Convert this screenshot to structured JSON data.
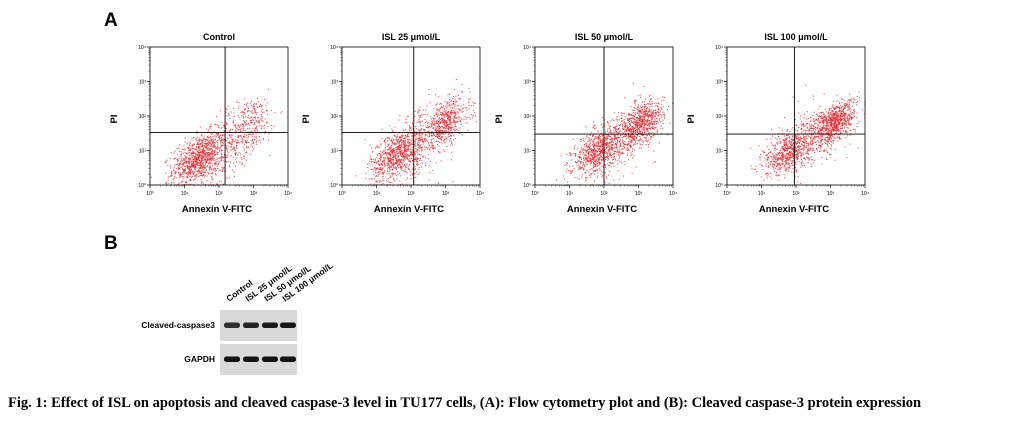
{
  "panel_a_letter": "A",
  "panel_b_letter": "B",
  "chart_data": [
    {
      "type": "scatter",
      "title": "Control",
      "xlabel": "Annexin V-FITC",
      "ylabel": "PI",
      "xscale": "log",
      "yscale": "log",
      "xlim": [
        1,
        10000
      ],
      "ylim": [
        1,
        10000
      ],
      "ticks": [
        "10⁰",
        "10¹",
        "10²",
        "10³",
        "10⁴"
      ],
      "quadrant_gate": {
        "x": 150,
        "y": 33
      },
      "clusters": [
        {
          "center": [
            25,
            6
          ],
          "spread": 0.38,
          "count": 900
        },
        {
          "center": [
            600,
            55
          ],
          "spread": 0.45,
          "count": 320
        },
        {
          "center": [
            120,
            8
          ],
          "spread": 0.6,
          "count": 260
        }
      ],
      "grid": false,
      "point_color": "#e8282e"
    },
    {
      "type": "scatter",
      "title": "ISL 25 μmol/L",
      "xlabel": "Annexin V-FITC",
      "ylabel": "PI",
      "xscale": "log",
      "yscale": "log",
      "xlim": [
        1,
        10000
      ],
      "ylim": [
        1,
        10000
      ],
      "ticks": [
        "10⁰",
        "10¹",
        "10²",
        "10³",
        "10⁴"
      ],
      "quadrant_gate": {
        "x": 120,
        "y": 33
      },
      "clusters": [
        {
          "center": [
            40,
            8
          ],
          "spread": 0.4,
          "count": 800
        },
        {
          "center": [
            1000,
            70
          ],
          "spread": 0.35,
          "count": 480
        },
        {
          "center": [
            200,
            20
          ],
          "spread": 0.55,
          "count": 300
        }
      ],
      "grid": false,
      "point_color": "#e8282e"
    },
    {
      "type": "scatter",
      "title": "ISL 50 μmol/L",
      "xlabel": "Annexin V-FITC",
      "ylabel": "PI",
      "xscale": "log",
      "yscale": "log",
      "xlim": [
        1,
        10000
      ],
      "ylim": [
        1,
        10000
      ],
      "ticks": [
        "10⁰",
        "10¹",
        "10²",
        "10³",
        "10⁴"
      ],
      "quadrant_gate": {
        "x": 100,
        "y": 30
      },
      "clusters": [
        {
          "center": [
            60,
            9
          ],
          "spread": 0.35,
          "count": 650
        },
        {
          "center": [
            1200,
            65
          ],
          "spread": 0.32,
          "count": 620
        },
        {
          "center": [
            300,
            25
          ],
          "spread": 0.5,
          "count": 380
        }
      ],
      "grid": false,
      "point_color": "#e8282e"
    },
    {
      "type": "scatter",
      "title": "ISL 100 μmol/L",
      "xlabel": "Annexin V-FITC",
      "ylabel": "PI",
      "xscale": "log",
      "yscale": "log",
      "xlim": [
        1,
        10000
      ],
      "ylim": [
        1,
        10000
      ],
      "ticks": [
        "10⁰",
        "10¹",
        "10²",
        "10³",
        "10⁴"
      ],
      "quadrant_gate": {
        "x": 90,
        "y": 30
      },
      "clusters": [
        {
          "center": [
            55,
            9
          ],
          "spread": 0.33,
          "count": 600
        },
        {
          "center": [
            1300,
            70
          ],
          "spread": 0.3,
          "count": 700
        },
        {
          "center": [
            300,
            25
          ],
          "spread": 0.5,
          "count": 380
        }
      ],
      "grid": false,
      "point_color": "#e8282e"
    }
  ],
  "western_blot": {
    "lanes": [
      "Control",
      "ISL 25 μmol/L",
      "ISL 50 μmol/L",
      "ISL 100 μmol/L"
    ],
    "rows": [
      {
        "label": "Cleaved-caspase3",
        "band_intensity": [
          0.55,
          0.75,
          0.85,
          0.9
        ]
      },
      {
        "label": "GAPDH",
        "band_intensity": [
          0.95,
          0.95,
          0.95,
          0.95
        ]
      }
    ]
  },
  "caption": "Fig. 1: Effect of ISL on apoptosis and cleaved caspase-3 level in TU177 cells, (A): Flow cytometry plot and (B): Cleaved caspase-3 protein expression"
}
